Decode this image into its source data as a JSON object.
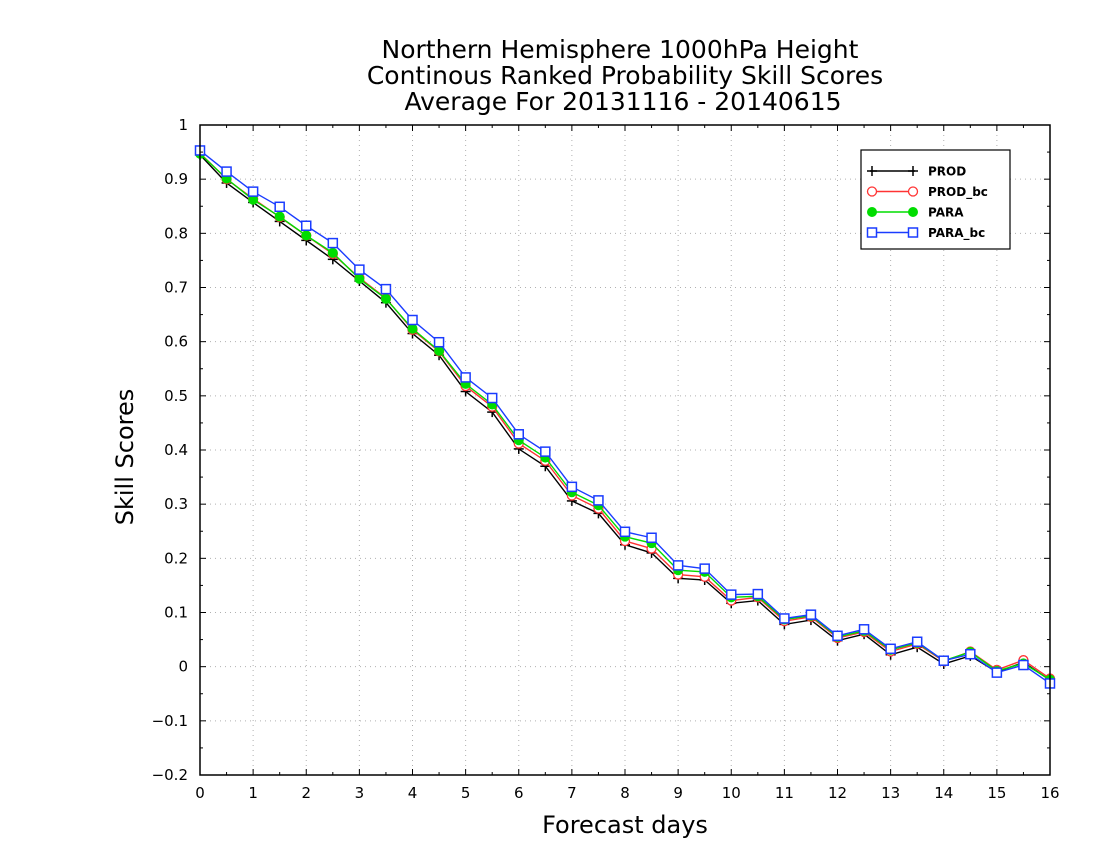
{
  "chart_data": {
    "type": "line",
    "title": [
      "Northern Hemisphere 1000hPa Height",
      "Continous Ranked Probability Skill Scores",
      "Average For 20131116 - 20140615"
    ],
    "xlabel": "Forecast days",
    "ylabel": "Skill Scores",
    "xlim": [
      0,
      16
    ],
    "ylim": [
      -0.2,
      1
    ],
    "x_ticks": [
      0,
      1,
      2,
      3,
      4,
      5,
      6,
      7,
      8,
      9,
      10,
      11,
      12,
      13,
      14,
      15,
      16
    ],
    "y_ticks": [
      -0.2,
      -0.1,
      0,
      0.1,
      0.2,
      0.3,
      0.4,
      0.5,
      0.6,
      0.7,
      0.8,
      0.9,
      1
    ],
    "x_tick_labels": [
      "0",
      "1",
      "2",
      "3",
      "4",
      "5",
      "6",
      "7",
      "8",
      "9",
      "10",
      "11",
      "12",
      "13",
      "14",
      "15",
      "16"
    ],
    "y_tick_labels": [
      "−0.2",
      "−0.1",
      "0",
      "0.1",
      "0.2",
      "0.3",
      "0.4",
      "0.5",
      "0.6",
      "0.7",
      "0.8",
      "0.9",
      "1"
    ],
    "grid": true,
    "legend_position": "top-right",
    "x": [
      0,
      0.5,
      1,
      1.5,
      2,
      2.5,
      3,
      3.5,
      4,
      4.5,
      5,
      5.5,
      6,
      6.5,
      7,
      7.5,
      8,
      8.5,
      9,
      9.5,
      10,
      10.5,
      11,
      11.5,
      12,
      12.5,
      13,
      13.5,
      14,
      14.5,
      15,
      15.5,
      16
    ],
    "series": [
      {
        "name": "PROD",
        "color": "#000000",
        "marker": "plus",
        "values": [
          0.945,
          0.893,
          0.857,
          0.822,
          0.787,
          0.752,
          0.712,
          0.672,
          0.615,
          0.575,
          0.508,
          0.47,
          0.402,
          0.37,
          0.306,
          0.283,
          0.225,
          0.21,
          0.163,
          0.16,
          0.117,
          0.122,
          0.078,
          0.086,
          0.048,
          0.06,
          0.022,
          0.036,
          0.005,
          0.02,
          -0.01,
          0.008,
          -0.025
        ]
      },
      {
        "name": "PROD_bc",
        "color": "#ff3333",
        "marker": "open-circle",
        "values": [
          0.948,
          0.9,
          0.864,
          0.83,
          0.796,
          0.762,
          0.718,
          0.68,
          0.622,
          0.582,
          0.518,
          0.48,
          0.412,
          0.38,
          0.316,
          0.292,
          0.232,
          0.218,
          0.17,
          0.166,
          0.122,
          0.128,
          0.084,
          0.092,
          0.053,
          0.064,
          0.028,
          0.042,
          0.01,
          0.028,
          -0.006,
          0.012,
          -0.022
        ]
      },
      {
        "name": "PARA",
        "color": "#00dd00",
        "marker": "filled-circle",
        "values": [
          0.947,
          0.901,
          0.862,
          0.831,
          0.796,
          0.764,
          0.716,
          0.679,
          0.624,
          0.583,
          0.522,
          0.484,
          0.418,
          0.386,
          0.322,
          0.298,
          0.24,
          0.228,
          0.178,
          0.175,
          0.128,
          0.13,
          0.087,
          0.094,
          0.055,
          0.066,
          0.031,
          0.044,
          0.011,
          0.027,
          -0.008,
          0.006,
          -0.024
        ]
      },
      {
        "name": "PARA_bc",
        "color": "#1a3cff",
        "marker": "open-square",
        "values": [
          0.953,
          0.914,
          0.877,
          0.849,
          0.814,
          0.782,
          0.733,
          0.697,
          0.64,
          0.599,
          0.534,
          0.496,
          0.429,
          0.397,
          0.332,
          0.307,
          0.249,
          0.238,
          0.187,
          0.181,
          0.133,
          0.134,
          0.089,
          0.096,
          0.057,
          0.069,
          0.033,
          0.046,
          0.011,
          0.023,
          -0.011,
          0.003,
          -0.031
        ]
      }
    ]
  }
}
